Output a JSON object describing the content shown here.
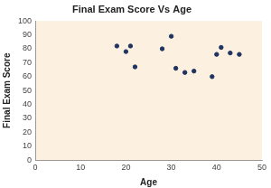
{
  "chart_data": {
    "type": "scatter",
    "title": "Final Exam Score Vs Age",
    "x_label": "Age",
    "y_label": "Final Exam Score",
    "x": [
      18,
      20,
      21,
      22,
      28,
      30,
      31,
      33,
      35,
      39,
      40,
      41,
      43,
      45
    ],
    "values": [
      82,
      78,
      82,
      67,
      80,
      89,
      66,
      63,
      64,
      60,
      76,
      81,
      77,
      76
    ],
    "color": "#1f3460",
    "marker": "circle",
    "xlim": [
      0,
      50
    ],
    "xticks": [
      0,
      10,
      20,
      30,
      40,
      50
    ],
    "ylim": [
      0,
      100
    ],
    "yticks": [
      0,
      10,
      20,
      30,
      40,
      50,
      60,
      70,
      80,
      90,
      100
    ],
    "grid": false
  }
}
